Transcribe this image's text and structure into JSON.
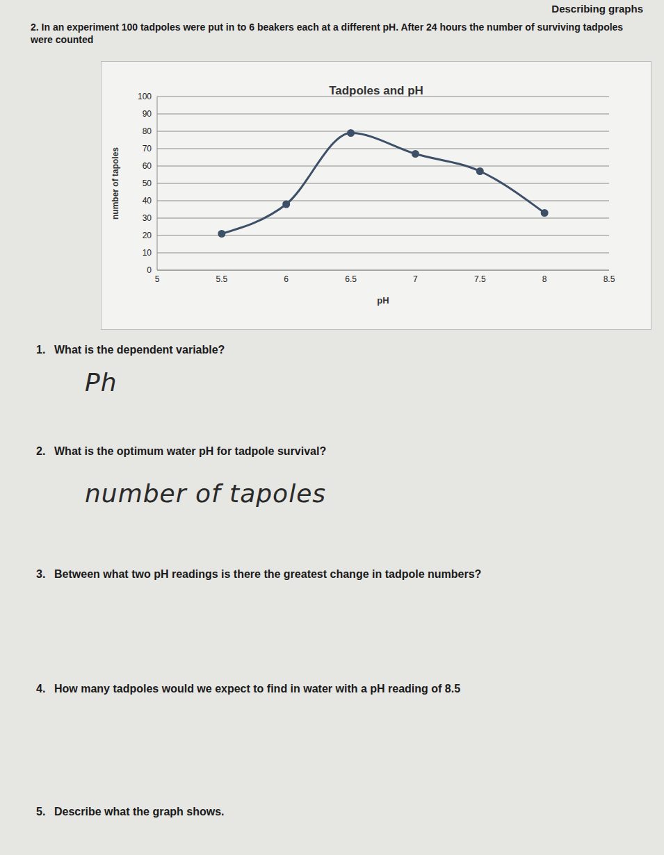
{
  "header": {
    "title": "Describing graphs"
  },
  "intro": "2. In an experiment 100 tadpoles were put in to 6 beakers each at a different pH. After 24 hours the number of surviving tadpoles were counted",
  "chart_data": {
    "type": "line",
    "title": "Tadpoles and pH",
    "x_label": "pH",
    "y_label": "number of tapoles",
    "x": [
      5.5,
      6,
      6.5,
      7,
      7.5,
      8
    ],
    "values": [
      21,
      38,
      79,
      67,
      57,
      33
    ],
    "color": "#3d5068",
    "marker": "circle",
    "line_style": "solid",
    "xlim": [
      5,
      8.5
    ],
    "xticks": [
      5,
      5.5,
      6,
      6.5,
      7,
      7.5,
      8,
      8.5
    ],
    "ylim": [
      0,
      100
    ],
    "yticks": [
      0,
      10,
      20,
      30,
      40,
      50,
      60,
      70,
      80,
      90,
      100
    ],
    "grid": true
  },
  "questions": [
    {
      "number": "1.",
      "text": "What is the dependent variable?",
      "answer": "Ph"
    },
    {
      "number": "2.",
      "text": "What is the optimum water pH for tadpole survival?",
      "answer": "number of tapoles"
    },
    {
      "number": "3.",
      "text": "Between what two pH readings is there the greatest change in tadpole numbers?"
    },
    {
      "number": "4.",
      "text": "How many tadpoles would we expect to find in water with a pH reading of 8.5"
    },
    {
      "number": "5.",
      "text": "Describe what the graph shows."
    }
  ]
}
